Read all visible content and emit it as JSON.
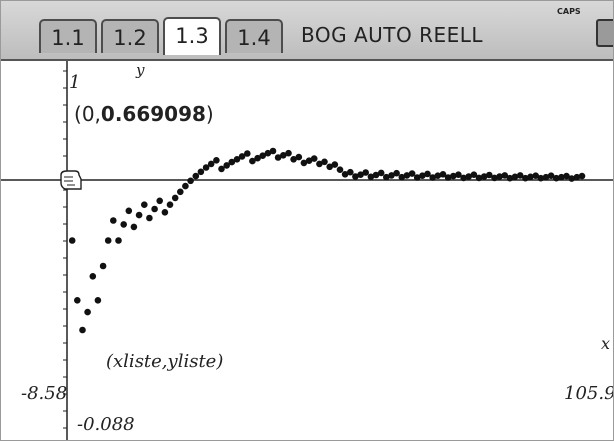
{
  "header": {
    "tabs": [
      {
        "label": "1.1",
        "active": false
      },
      {
        "label": "1.2",
        "active": false
      },
      {
        "label": "1.3",
        "active": true
      },
      {
        "label": "1.4",
        "active": false
      }
    ],
    "document_title": "BOG AUTO REELL",
    "caps_indicator": "CAPS",
    "battery_icon": "battery-icon"
  },
  "graph": {
    "y_axis_label": "y",
    "x_axis_label": "x",
    "y_top_value": "1",
    "trace_point": {
      "x": "0",
      "y": "0.669098"
    },
    "plot_label": "(xliste,yliste)",
    "window": {
      "xmin": "-8.58",
      "xmax": "105.9",
      "ymin": "-0.088"
    },
    "cursor_icon": "hand-cursor-icon"
  },
  "chart_data": {
    "type": "scatter",
    "series": [
      {
        "name": "(xliste,yliste)",
        "x": [
          1,
          2,
          3,
          4,
          5,
          6,
          7,
          8,
          9,
          10,
          11,
          12,
          13,
          14,
          15,
          16,
          17,
          18,
          19,
          20,
          21,
          22,
          23,
          24,
          25,
          26,
          27,
          28,
          29,
          30,
          31,
          32,
          33,
          34,
          35,
          36,
          37,
          38,
          39,
          40,
          41,
          42,
          43,
          44,
          45,
          46,
          47,
          48,
          49,
          50,
          51,
          52,
          53,
          54,
          55,
          56,
          57,
          58,
          59,
          60,
          61,
          62,
          63,
          64,
          65,
          66,
          67,
          68,
          69,
          70,
          71,
          72,
          73,
          74,
          75,
          76,
          77,
          78,
          79,
          80,
          81,
          82,
          83,
          84,
          85,
          86,
          87,
          88,
          89,
          90,
          91,
          92,
          93,
          94,
          95,
          96,
          97,
          98,
          99,
          100
        ],
        "y": [
          0.5,
          0.333,
          0.25,
          0.3,
          0.4,
          0.333,
          0.429,
          0.5,
          0.556,
          0.5,
          0.545,
          0.583,
          0.538,
          0.571,
          0.6,
          0.563,
          0.588,
          0.611,
          0.579,
          0.6,
          0.619,
          0.636,
          0.652,
          0.667,
          0.68,
          0.692,
          0.704,
          0.714,
          0.724,
          0.7,
          0.71,
          0.719,
          0.727,
          0.735,
          0.743,
          0.722,
          0.73,
          0.737,
          0.744,
          0.75,
          0.732,
          0.738,
          0.744,
          0.727,
          0.733,
          0.717,
          0.723,
          0.729,
          0.714,
          0.72,
          0.706,
          0.712,
          0.698,
          0.685,
          0.691,
          0.679,
          0.684,
          0.69,
          0.678,
          0.683,
          0.689,
          0.677,
          0.682,
          0.688,
          0.677,
          0.682,
          0.687,
          0.676,
          0.681,
          0.686,
          0.676,
          0.681,
          0.685,
          0.676,
          0.68,
          0.684,
          0.675,
          0.679,
          0.684,
          0.675,
          0.679,
          0.683,
          0.675,
          0.679,
          0.682,
          0.674,
          0.678,
          0.682,
          0.674,
          0.678,
          0.681,
          0.674,
          0.677,
          0.681,
          0.674,
          0.677,
          0.68,
          0.673,
          0.677,
          0.68
        ]
      }
    ],
    "x_range": [
      -8.58,
      105.9
    ],
    "y_range": [
      -0.088,
      1
    ],
    "grid": false,
    "reference_line_y": 0.669098
  }
}
